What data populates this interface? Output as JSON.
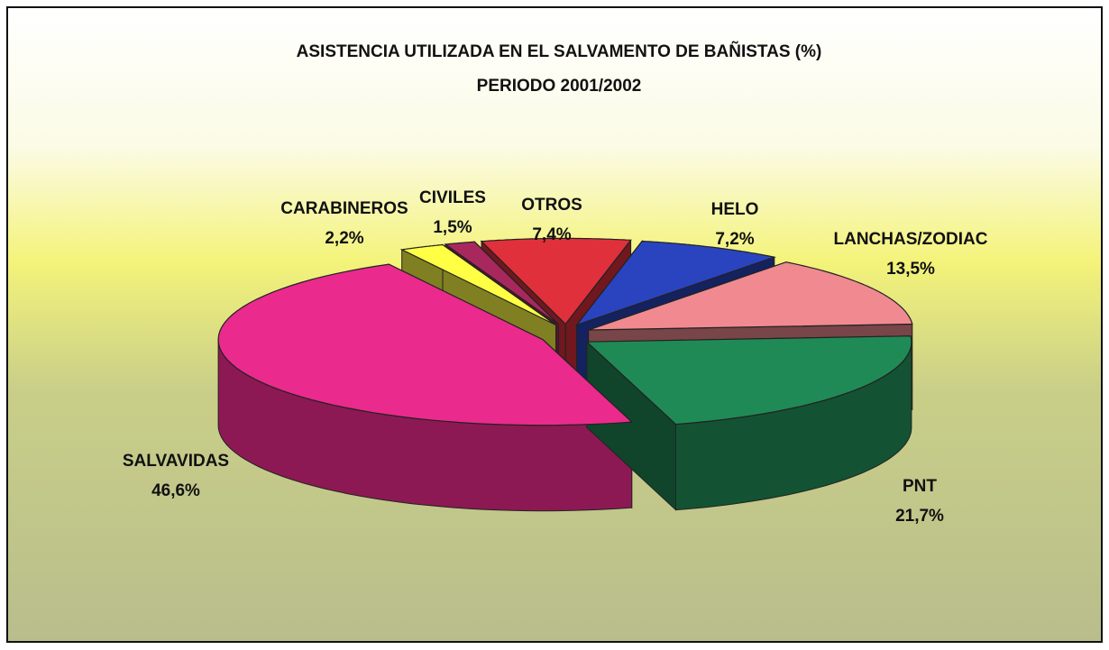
{
  "chart_data": {
    "type": "pie3d",
    "title": "ASISTENCIA UTILIZADA EN EL SALVAMENTO DE BAÑISTAS (%)",
    "subtitle": "PERIODO 2001/2002",
    "categories": [
      "OTROS",
      "HELO",
      "LANCHAS/ZODIAC",
      "PNT",
      "SALVAVIDAS",
      "CARABINEROS",
      "CIVILES"
    ],
    "values": [
      7.4,
      7.2,
      13.5,
      21.7,
      46.6,
      2.2,
      1.5
    ],
    "value_labels": [
      "7,4%",
      "7,2%",
      "13,5%",
      "21,7%",
      "46,6%",
      "2,2%",
      "1,5%"
    ],
    "colors": [
      "#e0303c",
      "#2a44c0",
      "#f08a90",
      "#1f8a55",
      "#ea2a8c",
      "#ffff44",
      "#a8285e"
    ]
  }
}
